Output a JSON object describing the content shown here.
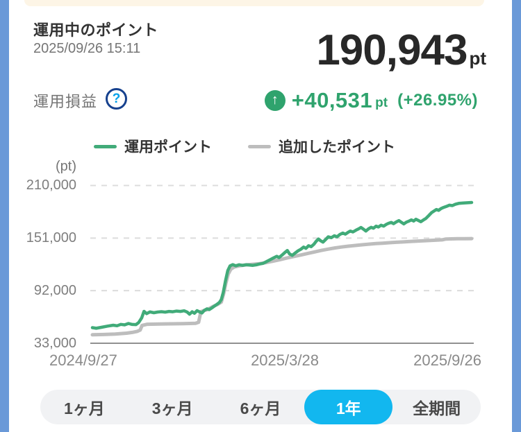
{
  "colors": {
    "side_background": "#6A99D8",
    "banner": "#FDF5E6",
    "accent_green": "#2FA36D",
    "line_green": "#41AB79",
    "line_gray": "#BDBDBD",
    "selected_cyan": "#12B7EF",
    "help_border_navy": "#16418E",
    "help_question_cyan": "#00A0E9"
  },
  "header": {
    "title": "運用中のポイント",
    "timestamp": "2025/09/26 15:11",
    "total_points": "190,943",
    "total_unit": "pt",
    "profit_label": "運用損益",
    "help_icon": "?",
    "arrow_icon": "↑",
    "profit_value": "+40,531",
    "profit_unit": "pt",
    "profit_percent": "(+26.95%)"
  },
  "legend": [
    {
      "label": "運用ポイント",
      "color": "#41AB79"
    },
    {
      "label": "追加したポイント",
      "color": "#BDBDBD"
    }
  ],
  "chart_data": {
    "type": "line",
    "unit_label": "(pt)",
    "ylim": [
      33000,
      210000
    ],
    "y_ticks": [
      210000,
      151000,
      92000,
      33000
    ],
    "y_tick_labels": [
      "210,000",
      "151,000",
      "92,000",
      "33,000"
    ],
    "x_tick_labels": [
      "2024/9/27",
      "2025/3/28",
      "2025/9/26"
    ],
    "grid": "horizontal dashed, solid baseline at 33000",
    "legend_position": "top",
    "series": [
      {
        "name": "運用ポイント",
        "color": "#41AB79",
        "width": 4.5,
        "points": [
          [
            0,
            50500
          ],
          [
            0.01,
            49800
          ],
          [
            0.025,
            51000
          ],
          [
            0.04,
            52200
          ],
          [
            0.055,
            53200
          ],
          [
            0.065,
            52600
          ],
          [
            0.075,
            54200
          ],
          [
            0.085,
            53600
          ],
          [
            0.095,
            55200
          ],
          [
            0.105,
            54100
          ],
          [
            0.115,
            53900
          ],
          [
            0.122,
            56200
          ],
          [
            0.13,
            61500
          ],
          [
            0.136,
            68800
          ],
          [
            0.143,
            66200
          ],
          [
            0.152,
            68200
          ],
          [
            0.162,
            67200
          ],
          [
            0.172,
            68000
          ],
          [
            0.182,
            68400
          ],
          [
            0.192,
            67900
          ],
          [
            0.202,
            68700
          ],
          [
            0.212,
            68300
          ],
          [
            0.222,
            69100
          ],
          [
            0.232,
            68700
          ],
          [
            0.242,
            69400
          ],
          [
            0.25,
            67900
          ],
          [
            0.256,
            65600
          ],
          [
            0.263,
            68300
          ],
          [
            0.269,
            66600
          ],
          [
            0.276,
            69600
          ],
          [
            0.283,
            68100
          ],
          [
            0.289,
            67000
          ],
          [
            0.295,
            69900
          ],
          [
            0.302,
            71600
          ],
          [
            0.308,
            70700
          ],
          [
            0.315,
            72700
          ],
          [
            0.322,
            74800
          ],
          [
            0.329,
            76800
          ],
          [
            0.335,
            78800
          ],
          [
            0.34,
            82000
          ],
          [
            0.345,
            90000
          ],
          [
            0.351,
            103000
          ],
          [
            0.357,
            114500
          ],
          [
            0.363,
            119800
          ],
          [
            0.37,
            121200
          ],
          [
            0.378,
            119900
          ],
          [
            0.387,
            121100
          ],
          [
            0.396,
            120400
          ],
          [
            0.405,
            121100
          ],
          [
            0.414,
            120700
          ],
          [
            0.423,
            120400
          ],
          [
            0.432,
            121000
          ],
          [
            0.441,
            121900
          ],
          [
            0.45,
            122600
          ],
          [
            0.459,
            124600
          ],
          [
            0.468,
            126600
          ],
          [
            0.477,
            128600
          ],
          [
            0.486,
            130600
          ],
          [
            0.492,
            129100
          ],
          [
            0.499,
            131600
          ],
          [
            0.507,
            134600
          ],
          [
            0.514,
            137100
          ],
          [
            0.52,
            133100
          ],
          [
            0.527,
            131600
          ],
          [
            0.534,
            134100
          ],
          [
            0.542,
            136600
          ],
          [
            0.55,
            138600
          ],
          [
            0.557,
            140900
          ],
          [
            0.563,
            139400
          ],
          [
            0.57,
            142400
          ],
          [
            0.577,
            141400
          ],
          [
            0.584,
            144100
          ],
          [
            0.59,
            147400
          ],
          [
            0.596,
            149900
          ],
          [
            0.602,
            147900
          ],
          [
            0.608,
            146400
          ],
          [
            0.615,
            149400
          ],
          [
            0.622,
            152400
          ],
          [
            0.63,
            151400
          ],
          [
            0.638,
            153600
          ],
          [
            0.645,
            152400
          ],
          [
            0.652,
            154900
          ],
          [
            0.66,
            156600
          ],
          [
            0.667,
            155400
          ],
          [
            0.674,
            157400
          ],
          [
            0.68,
            158900
          ],
          [
            0.687,
            157900
          ],
          [
            0.695,
            159900
          ],
          [
            0.702,
            161400
          ],
          [
            0.708,
            162900
          ],
          [
            0.715,
            160900
          ],
          [
            0.721,
            158900
          ],
          [
            0.728,
            161400
          ],
          [
            0.735,
            163100
          ],
          [
            0.741,
            162100
          ],
          [
            0.748,
            164400
          ],
          [
            0.754,
            163400
          ],
          [
            0.761,
            165400
          ],
          [
            0.768,
            164400
          ],
          [
            0.775,
            166400
          ],
          [
            0.781,
            167600
          ],
          [
            0.788,
            168600
          ],
          [
            0.794,
            167100
          ],
          [
            0.801,
            169100
          ],
          [
            0.808,
            170600
          ],
          [
            0.814,
            168900
          ],
          [
            0.821,
            166900
          ],
          [
            0.828,
            168900
          ],
          [
            0.835,
            170100
          ],
          [
            0.841,
            171400
          ],
          [
            0.847,
            170100
          ],
          [
            0.853,
            172100
          ],
          [
            0.859,
            170900
          ],
          [
            0.866,
            169400
          ],
          [
            0.873,
            171400
          ],
          [
            0.879,
            172900
          ],
          [
            0.886,
            175900
          ],
          [
            0.894,
            179400
          ],
          [
            0.901,
            181400
          ],
          [
            0.907,
            183100
          ],
          [
            0.913,
            182100
          ],
          [
            0.919,
            184100
          ],
          [
            0.926,
            185400
          ],
          [
            0.933,
            186400
          ],
          [
            0.941,
            187900
          ],
          [
            0.949,
            187400
          ],
          [
            0.957,
            188900
          ],
          [
            0.966,
            189900
          ],
          [
            0.978,
            190400
          ],
          [
            1,
            190943
          ]
        ]
      },
      {
        "name": "追加したポイント",
        "color": "#BDBDBD",
        "width": 5,
        "points": [
          [
            0,
            42500
          ],
          [
            0.03,
            42800
          ],
          [
            0.06,
            43300
          ],
          [
            0.09,
            44300
          ],
          [
            0.105,
            45100
          ],
          [
            0.118,
            46300
          ],
          [
            0.126,
            47800
          ],
          [
            0.131,
            53000
          ],
          [
            0.145,
            54300
          ],
          [
            0.19,
            54700
          ],
          [
            0.24,
            55000
          ],
          [
            0.272,
            55300
          ],
          [
            0.28,
            56500
          ],
          [
            0.286,
            68500
          ],
          [
            0.295,
            69800
          ],
          [
            0.302,
            70600
          ],
          [
            0.311,
            72600
          ],
          [
            0.32,
            74600
          ],
          [
            0.33,
            76600
          ],
          [
            0.34,
            79200
          ],
          [
            0.346,
            88500
          ],
          [
            0.352,
            100500
          ],
          [
            0.358,
            110500
          ],
          [
            0.365,
            116200
          ],
          [
            0.374,
            118600
          ],
          [
            0.388,
            119900
          ],
          [
            0.405,
            120900
          ],
          [
            0.423,
            121600
          ],
          [
            0.441,
            122300
          ],
          [
            0.459,
            123600
          ],
          [
            0.477,
            125100
          ],
          [
            0.495,
            126800
          ],
          [
            0.513,
            128600
          ],
          [
            0.531,
            130300
          ],
          [
            0.549,
            132000
          ],
          [
            0.567,
            133700
          ],
          [
            0.585,
            135400
          ],
          [
            0.603,
            137100
          ],
          [
            0.621,
            138600
          ],
          [
            0.639,
            139900
          ],
          [
            0.657,
            141000
          ],
          [
            0.675,
            141900
          ],
          [
            0.693,
            142700
          ],
          [
            0.711,
            143500
          ],
          [
            0.729,
            144200
          ],
          [
            0.747,
            144800
          ],
          [
            0.765,
            145300
          ],
          [
            0.783,
            145800
          ],
          [
            0.801,
            146300
          ],
          [
            0.819,
            146700
          ],
          [
            0.837,
            147100
          ],
          [
            0.855,
            147500
          ],
          [
            0.873,
            147900
          ],
          [
            0.891,
            148300
          ],
          [
            0.909,
            148700
          ],
          [
            0.922,
            149000
          ],
          [
            0.932,
            149900
          ],
          [
            0.945,
            150100
          ],
          [
            0.963,
            150250
          ],
          [
            0.981,
            150350
          ],
          [
            1,
            150412
          ]
        ]
      }
    ]
  },
  "range_buttons": {
    "selected_color": "#12B7EF",
    "options": [
      {
        "label": "1ヶ月",
        "selected": false
      },
      {
        "label": "3ヶ月",
        "selected": false
      },
      {
        "label": "6ヶ月",
        "selected": false
      },
      {
        "label": "1年",
        "selected": true
      },
      {
        "label": "全期間",
        "selected": false
      }
    ]
  }
}
